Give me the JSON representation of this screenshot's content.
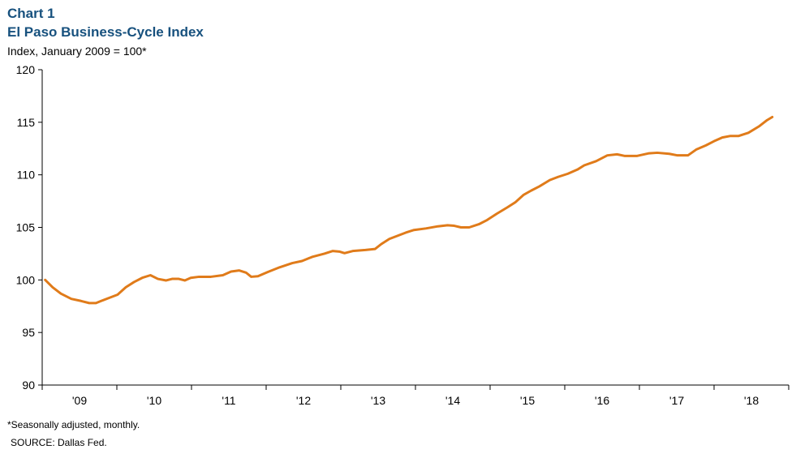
{
  "chart_data": {
    "type": "line",
    "title": "Chart 1",
    "subtitle": "El Paso Business-Cycle Index",
    "y_label": "Index, January 2009 = 100*",
    "notes": [
      "*Seasonally adjusted, monthly.",
      "SOURCE: Dallas Fed."
    ],
    "xlim": [
      2009,
      2019
    ],
    "xtick_marks": [
      2009,
      2010,
      2011,
      2012,
      2013,
      2014,
      2015,
      2016,
      2017,
      2018,
      2019
    ],
    "xticks": [
      {
        "value": 2009.5,
        "label": "'09"
      },
      {
        "value": 2010.5,
        "label": "'10"
      },
      {
        "value": 2011.5,
        "label": "'11"
      },
      {
        "value": 2012.5,
        "label": "'12"
      },
      {
        "value": 2013.5,
        "label": "'13"
      },
      {
        "value": 2014.5,
        "label": "'14"
      },
      {
        "value": 2015.5,
        "label": "'15"
      },
      {
        "value": 2016.5,
        "label": "'16"
      },
      {
        "value": 2017.5,
        "label": "'17"
      },
      {
        "value": 2018.5,
        "label": "'18"
      }
    ],
    "ylim": [
      90,
      120
    ],
    "yticks": [
      90,
      95,
      100,
      105,
      110,
      115,
      120
    ],
    "x": [
      2009.04,
      2009.14,
      2009.25,
      2009.39,
      2009.52,
      2009.63,
      2009.72,
      2009.79,
      2009.9,
      2010.01,
      2010.12,
      2010.23,
      2010.34,
      2010.45,
      2010.55,
      2010.66,
      2010.74,
      2010.83,
      2010.91,
      2010.99,
      2011.1,
      2011.26,
      2011.42,
      2011.53,
      2011.64,
      2011.73,
      2011.8,
      2011.89,
      2012.02,
      2012.18,
      2012.35,
      2012.48,
      2012.62,
      2012.78,
      2012.89,
      2012.98,
      2013.05,
      2013.16,
      2013.33,
      2013.46,
      2013.54,
      2013.65,
      2013.76,
      2013.87,
      2013.98,
      2014.14,
      2014.3,
      2014.43,
      2014.52,
      2014.61,
      2014.72,
      2014.85,
      2014.96,
      2015.09,
      2015.23,
      2015.34,
      2015.45,
      2015.55,
      2015.66,
      2015.8,
      2015.91,
      2016.04,
      2016.17,
      2016.26,
      2016.42,
      2016.57,
      2016.7,
      2016.8,
      2016.97,
      2017.13,
      2017.24,
      2017.4,
      2017.51,
      2017.65,
      2017.76,
      2017.89,
      2018.0,
      2018.11,
      2018.22,
      2018.33,
      2018.46,
      2018.6,
      2018.71,
      2018.78
    ],
    "series": [
      {
        "name": "El Paso Business-Cycle Index",
        "color": "#e07b1a",
        "values": [
          100,
          99.3,
          98.7,
          98.2,
          98.0,
          97.8,
          97.8,
          98.0,
          98.3,
          98.6,
          99.3,
          99.8,
          100.2,
          100.45,
          100.1,
          99.95,
          100.1,
          100.1,
          99.95,
          100.2,
          100.3,
          100.3,
          100.45,
          100.8,
          100.9,
          100.7,
          100.3,
          100.35,
          100.75,
          101.2,
          101.6,
          101.8,
          102.2,
          102.5,
          102.75,
          102.7,
          102.55,
          102.75,
          102.85,
          102.95,
          103.4,
          103.9,
          104.2,
          104.5,
          104.75,
          104.9,
          105.1,
          105.2,
          105.15,
          105.0,
          105.0,
          105.3,
          105.7,
          106.3,
          106.9,
          107.4,
          108.1,
          108.5,
          108.9,
          109.5,
          109.8,
          110.1,
          110.5,
          110.9,
          111.3,
          111.85,
          111.95,
          111.8,
          111.8,
          112.05,
          112.1,
          112.0,
          111.85,
          111.85,
          112.4,
          112.8,
          113.2,
          113.55,
          113.7,
          113.7,
          114.0,
          114.6,
          115.2,
          115.5
        ]
      }
    ]
  }
}
